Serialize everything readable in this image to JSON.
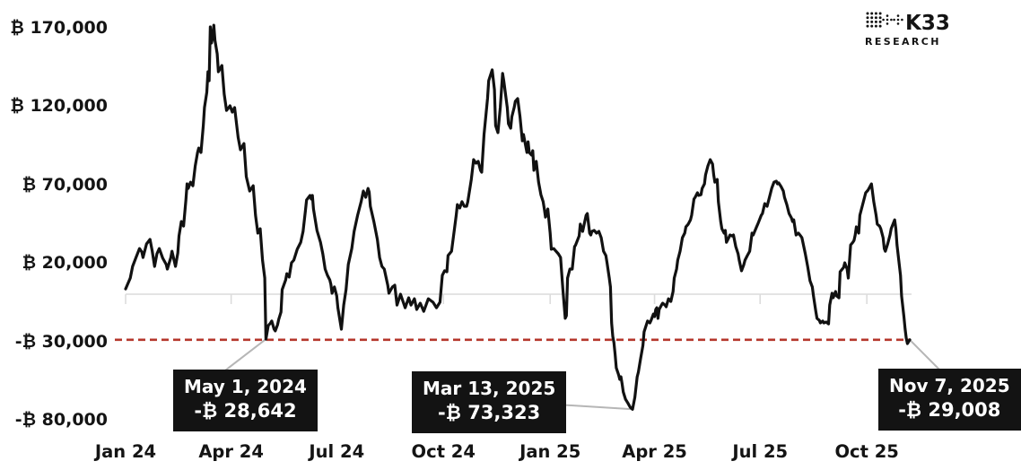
{
  "brand": {
    "name": "K33",
    "sub": "RESEARCH"
  },
  "colors": {
    "series": "#111111",
    "reference": "#b5372c",
    "connector": "#b6b6b6",
    "axis": "#dcdcdc",
    "callout_bg": "#131313",
    "text": "#141414"
  },
  "chart_data": {
    "type": "line",
    "title": "",
    "xlabel": "",
    "ylabel": "",
    "currency_prefix": "₿",
    "x_domain_days": 676,
    "x_domain": [
      "Jan 2024",
      "Nov 7, 2025"
    ],
    "ylim": [
      -97000,
      173000
    ],
    "grid": "off",
    "baseline_value": 0,
    "x_ticks": [
      {
        "day": 0,
        "label": "Jan 24"
      },
      {
        "day": 91,
        "label": "Apr 24"
      },
      {
        "day": 182,
        "label": "Jul 24"
      },
      {
        "day": 274,
        "label": "Oct 24"
      },
      {
        "day": 366,
        "label": "Jan 25"
      },
      {
        "day": 456,
        "label": "Apr 25"
      },
      {
        "day": 547,
        "label": "Jul 25"
      },
      {
        "day": 639,
        "label": "Oct 25"
      }
    ],
    "y_ticks": [
      {
        "value": 170000,
        "label": "₿ 170,000"
      },
      {
        "value": 120000,
        "label": "₿ 120,000"
      },
      {
        "value": 70000,
        "label": "₿ 70,000"
      },
      {
        "value": 20000,
        "label": "₿ 20,000"
      },
      {
        "value": -30000,
        "label": "-₿ 30,000"
      },
      {
        "value": -80000,
        "label": "-₿ 80,000"
      }
    ],
    "reference_line": {
      "value": -29008,
      "color": "#b5372c",
      "style": "dashed"
    },
    "annotations": [
      {
        "date": "May 1, 2024",
        "value_label": "-₿ 28,642",
        "day": 121,
        "value": -28642
      },
      {
        "date": "Mar 13, 2025",
        "value_label": "-₿ 73,323",
        "day": 437,
        "value": -73323
      },
      {
        "date": "Nov 7, 2025",
        "value_label": "-₿ 29,008",
        "day": 676,
        "value": -29008
      }
    ],
    "points": [
      [
        0,
        3400
      ],
      [
        4,
        10300
      ],
      [
        6,
        17700
      ],
      [
        9,
        23400
      ],
      [
        12,
        29100
      ],
      [
        14,
        26900
      ],
      [
        15,
        23400
      ],
      [
        18,
        32000
      ],
      [
        21,
        34900
      ],
      [
        23,
        27400
      ],
      [
        25,
        17700
      ],
      [
        27,
        25700
      ],
      [
        29,
        29100
      ],
      [
        32,
        22900
      ],
      [
        35,
        18900
      ],
      [
        36,
        16000
      ],
      [
        39,
        23400
      ],
      [
        40,
        27400
      ],
      [
        43,
        17700
      ],
      [
        45,
        26300
      ],
      [
        46,
        37100
      ],
      [
        48,
        46300
      ],
      [
        50,
        43400
      ],
      [
        52,
        60000
      ],
      [
        53,
        70300
      ],
      [
        54,
        67400
      ],
      [
        56,
        71400
      ],
      [
        58,
        69100
      ],
      [
        60,
        81700
      ],
      [
        62,
        90300
      ],
      [
        63,
        93100
      ],
      [
        65,
        90300
      ],
      [
        67,
        107400
      ],
      [
        68,
        118900
      ],
      [
        70,
        128600
      ],
      [
        71,
        141700
      ],
      [
        72,
        136000
      ],
      [
        73,
        170300
      ],
      [
        74,
        160000
      ],
      [
        75,
        163400
      ],
      [
        76,
        171400
      ],
      [
        77,
        161700
      ],
      [
        79,
        153100
      ],
      [
        80,
        141700
      ],
      [
        83,
        145700
      ],
      [
        85,
        127400
      ],
      [
        87,
        117100
      ],
      [
        90,
        120000
      ],
      [
        92,
        116000
      ],
      [
        94,
        118900
      ],
      [
        97,
        100000
      ],
      [
        99,
        92000
      ],
      [
        102,
        96000
      ],
      [
        104,
        74900
      ],
      [
        107,
        65700
      ],
      [
        110,
        69100
      ],
      [
        112,
        50300
      ],
      [
        114,
        38900
      ],
      [
        116,
        41700
      ],
      [
        118,
        21700
      ],
      [
        120,
        10300
      ],
      [
        121,
        -28642
      ],
      [
        123,
        -20000
      ],
      [
        125,
        -18300
      ],
      [
        126,
        -17100
      ],
      [
        128,
        -22300
      ],
      [
        129,
        -23400
      ],
      [
        131,
        -19400
      ],
      [
        132,
        -16000
      ],
      [
        134,
        -11400
      ],
      [
        135,
        2900
      ],
      [
        138,
        9100
      ],
      [
        139,
        13100
      ],
      [
        141,
        10900
      ],
      [
        143,
        20000
      ],
      [
        145,
        21700
      ],
      [
        148,
        28600
      ],
      [
        151,
        33100
      ],
      [
        153,
        40000
      ],
      [
        155,
        53100
      ],
      [
        156,
        60000
      ],
      [
        159,
        62900
      ],
      [
        160,
        60600
      ],
      [
        161,
        62900
      ],
      [
        162,
        54300
      ],
      [
        165,
        40600
      ],
      [
        168,
        33100
      ],
      [
        170,
        25700
      ],
      [
        172,
        16000
      ],
      [
        174,
        12000
      ],
      [
        176,
        9100
      ],
      [
        177,
        6300
      ],
      [
        178,
        600
      ],
      [
        180,
        4600
      ],
      [
        182,
        -1100
      ],
      [
        183,
        -8600
      ],
      [
        186,
        -22300
      ],
      [
        188,
        -6900
      ],
      [
        190,
        2900
      ],
      [
        192,
        18900
      ],
      [
        195,
        29100
      ],
      [
        197,
        40000
      ],
      [
        200,
        50300
      ],
      [
        203,
        58900
      ],
      [
        205,
        65700
      ],
      [
        207,
        61700
      ],
      [
        209,
        67400
      ],
      [
        210,
        65100
      ],
      [
        211,
        56000
      ],
      [
        214,
        46300
      ],
      [
        217,
        34900
      ],
      [
        219,
        23400
      ],
      [
        221,
        17700
      ],
      [
        223,
        16000
      ],
      [
        226,
        5700
      ],
      [
        227,
        600
      ],
      [
        230,
        4600
      ],
      [
        232,
        5700
      ],
      [
        234,
        -6900
      ],
      [
        237,
        0
      ],
      [
        241,
        -8600
      ],
      [
        244,
        -2300
      ],
      [
        246,
        -6900
      ],
      [
        249,
        -2900
      ],
      [
        251,
        -9700
      ],
      [
        254,
        -5700
      ],
      [
        257,
        -10900
      ],
      [
        261,
        -2900
      ],
      [
        263,
        -4000
      ],
      [
        265,
        -5100
      ],
      [
        268,
        -8600
      ],
      [
        271,
        -5100
      ],
      [
        273,
        12000
      ],
      [
        275,
        14900
      ],
      [
        277,
        14300
      ],
      [
        278,
        24600
      ],
      [
        281,
        27400
      ],
      [
        282,
        33100
      ],
      [
        285,
        50300
      ],
      [
        286,
        57100
      ],
      [
        288,
        54900
      ],
      [
        290,
        58900
      ],
      [
        292,
        56000
      ],
      [
        294,
        56000
      ],
      [
        295,
        58900
      ],
      [
        298,
        73100
      ],
      [
        300,
        85700
      ],
      [
        302,
        83400
      ],
      [
        304,
        84600
      ],
      [
        306,
        78900
      ],
      [
        307,
        77700
      ],
      [
        309,
        101700
      ],
      [
        312,
        124600
      ],
      [
        313,
        136000
      ],
      [
        316,
        142900
      ],
      [
        318,
        130300
      ],
      [
        319,
        107400
      ],
      [
        321,
        102900
      ],
      [
        323,
        118900
      ],
      [
        325,
        140600
      ],
      [
        326,
        136000
      ],
      [
        329,
        118900
      ],
      [
        330,
        108600
      ],
      [
        332,
        105700
      ],
      [
        333,
        113100
      ],
      [
        335,
        118900
      ],
      [
        336,
        122900
      ],
      [
        338,
        124600
      ],
      [
        340,
        113100
      ],
      [
        342,
        97700
      ],
      [
        343,
        101700
      ],
      [
        346,
        90300
      ],
      [
        347,
        97100
      ],
      [
        348,
        90300
      ],
      [
        350,
        88600
      ],
      [
        351,
        91400
      ],
      [
        352,
        78900
      ],
      [
        354,
        84600
      ],
      [
        356,
        71400
      ],
      [
        358,
        63400
      ],
      [
        360,
        58900
      ],
      [
        361,
        54300
      ],
      [
        362,
        49100
      ],
      [
        364,
        54300
      ],
      [
        366,
        38900
      ],
      [
        367,
        28600
      ],
      [
        369,
        29100
      ],
      [
        371,
        27400
      ],
      [
        373,
        25700
      ],
      [
        375,
        23400
      ],
      [
        377,
        2900
      ],
      [
        379,
        -15400
      ],
      [
        380,
        -13700
      ],
      [
        381,
        10300
      ],
      [
        383,
        16000
      ],
      [
        385,
        16000
      ],
      [
        387,
        30300
      ],
      [
        388,
        31400
      ],
      [
        391,
        37100
      ],
      [
        392,
        44600
      ],
      [
        394,
        40000
      ],
      [
        397,
        50300
      ],
      [
        398,
        51400
      ],
      [
        400,
        38900
      ],
      [
        401,
        37700
      ],
      [
        402,
        40000
      ],
      [
        404,
        40600
      ],
      [
        406,
        38900
      ],
      [
        408,
        40000
      ],
      [
        410,
        36000
      ],
      [
        412,
        27400
      ],
      [
        414,
        24600
      ],
      [
        415,
        20000
      ],
      [
        417,
        10300
      ],
      [
        418,
        4600
      ],
      [
        419,
        -18300
      ],
      [
        420,
        -26900
      ],
      [
        421,
        -30900
      ],
      [
        422,
        -38300
      ],
      [
        423,
        -46900
      ],
      [
        425,
        -51400
      ],
      [
        426,
        -54300
      ],
      [
        427,
        -52600
      ],
      [
        428,
        -57100
      ],
      [
        429,
        -62300
      ],
      [
        431,
        -66900
      ],
      [
        433,
        -69300
      ],
      [
        435,
        -72000
      ],
      [
        437,
        -73323
      ],
      [
        439,
        -65700
      ],
      [
        441,
        -52600
      ],
      [
        442,
        -49700
      ],
      [
        444,
        -41100
      ],
      [
        446,
        -32600
      ],
      [
        447,
        -24000
      ],
      [
        449,
        -19400
      ],
      [
        450,
        -17100
      ],
      [
        452,
        -18300
      ],
      [
        453,
        -16600
      ],
      [
        455,
        -12600
      ],
      [
        456,
        -14300
      ],
      [
        457,
        -9700
      ],
      [
        458,
        -8600
      ],
      [
        459,
        -15400
      ],
      [
        460,
        -9700
      ],
      [
        462,
        -6900
      ],
      [
        463,
        -5700
      ],
      [
        465,
        -6900
      ],
      [
        466,
        -8000
      ],
      [
        468,
        -2900
      ],
      [
        470,
        -4600
      ],
      [
        472,
        1700
      ],
      [
        473,
        10300
      ],
      [
        475,
        16000
      ],
      [
        476,
        21700
      ],
      [
        478,
        27400
      ],
      [
        480,
        36000
      ],
      [
        482,
        38900
      ],
      [
        483,
        42900
      ],
      [
        485,
        44600
      ],
      [
        487,
        47400
      ],
      [
        488,
        50300
      ],
      [
        490,
        60600
      ],
      [
        491,
        61700
      ],
      [
        493,
        64600
      ],
      [
        494,
        62900
      ],
      [
        496,
        63400
      ],
      [
        497,
        67400
      ],
      [
        499,
        70300
      ],
      [
        500,
        76000
      ],
      [
        502,
        81700
      ],
      [
        504,
        85700
      ],
      [
        506,
        82900
      ],
      [
        507,
        76000
      ],
      [
        508,
        71400
      ],
      [
        510,
        73100
      ],
      [
        511,
        58900
      ],
      [
        513,
        46300
      ],
      [
        514,
        41700
      ],
      [
        516,
        38900
      ],
      [
        517,
        40600
      ],
      [
        518,
        33100
      ],
      [
        520,
        36000
      ],
      [
        521,
        37700
      ],
      [
        523,
        37100
      ],
      [
        524,
        37700
      ],
      [
        526,
        30300
      ],
      [
        528,
        25700
      ],
      [
        529,
        21700
      ],
      [
        531,
        14900
      ],
      [
        533,
        18900
      ],
      [
        534,
        21700
      ],
      [
        536,
        24600
      ],
      [
        538,
        27400
      ],
      [
        540,
        38900
      ],
      [
        541,
        37700
      ],
      [
        544,
        42900
      ],
      [
        545,
        44600
      ],
      [
        548,
        50300
      ],
      [
        549,
        51400
      ],
      [
        551,
        57700
      ],
      [
        553,
        56000
      ],
      [
        555,
        61700
      ],
      [
        557,
        67400
      ],
      [
        559,
        71400
      ],
      [
        561,
        72000
      ],
      [
        562,
        70300
      ],
      [
        563,
        70900
      ],
      [
        565,
        68600
      ],
      [
        567,
        65700
      ],
      [
        568,
        61700
      ],
      [
        570,
        57100
      ],
      [
        572,
        51400
      ],
      [
        574,
        48600
      ],
      [
        575,
        46300
      ],
      [
        576,
        47400
      ],
      [
        578,
        37700
      ],
      [
        580,
        38900
      ],
      [
        582,
        37100
      ],
      [
        583,
        36000
      ],
      [
        586,
        25700
      ],
      [
        588,
        17700
      ],
      [
        590,
        8600
      ],
      [
        592,
        4600
      ],
      [
        593,
        -1100
      ],
      [
        595,
        -10900
      ],
      [
        596,
        -15400
      ],
      [
        598,
        -16600
      ],
      [
        599,
        -18300
      ],
      [
        601,
        -17100
      ],
      [
        602,
        -18300
      ],
      [
        604,
        -17700
      ],
      [
        606,
        -18900
      ],
      [
        607,
        -6900
      ],
      [
        609,
        600
      ],
      [
        610,
        -2300
      ],
      [
        612,
        1700
      ],
      [
        613,
        -1100
      ],
      [
        615,
        -2300
      ],
      [
        616,
        14300
      ],
      [
        619,
        17100
      ],
      [
        620,
        20000
      ],
      [
        622,
        16000
      ],
      [
        623,
        10300
      ],
      [
        625,
        31400
      ],
      [
        627,
        33100
      ],
      [
        628,
        34300
      ],
      [
        629,
        37700
      ],
      [
        630,
        42900
      ],
      [
        632,
        38900
      ],
      [
        633,
        50300
      ],
      [
        635,
        56000
      ],
      [
        637,
        61700
      ],
      [
        638,
        64600
      ],
      [
        640,
        66300
      ],
      [
        643,
        70300
      ],
      [
        645,
        58900
      ],
      [
        647,
        50300
      ],
      [
        648,
        44600
      ],
      [
        650,
        43400
      ],
      [
        651,
        41700
      ],
      [
        653,
        36000
      ],
      [
        654,
        29100
      ],
      [
        655,
        27400
      ],
      [
        657,
        32000
      ],
      [
        659,
        37700
      ],
      [
        660,
        41700
      ],
      [
        663,
        47400
      ],
      [
        664,
        41700
      ],
      [
        665,
        31400
      ],
      [
        668,
        12000
      ],
      [
        669,
        -1100
      ],
      [
        671,
        -14300
      ],
      [
        672,
        -22000
      ],
      [
        673,
        -28000
      ],
      [
        674,
        -31500
      ],
      [
        676,
        -29008
      ]
    ]
  }
}
